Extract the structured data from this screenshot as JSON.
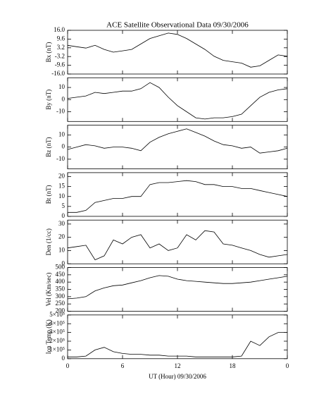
{
  "title": "ACE Satellite Observational Data   09/30/2006",
  "xlabel": "UT (Hour)   09/30/2006",
  "chart_data": [
    {
      "type": "line",
      "ylabel": "Bx (nT)",
      "color": "#000000",
      "x": [
        0,
        1,
        2,
        3,
        4,
        5,
        6,
        7,
        8,
        9,
        10,
        11,
        12,
        13,
        14,
        15,
        16,
        17,
        18,
        19,
        20,
        21,
        22,
        23,
        24
      ],
      "values": [
        5,
        4,
        3,
        5,
        2,
        0,
        1,
        2,
        6,
        10,
        12,
        14,
        13,
        10,
        6,
        2,
        -3,
        -6,
        -7,
        -8,
        -11,
        -10,
        -6,
        -2,
        -3
      ],
      "xlim": [
        0,
        24
      ],
      "ylim": [
        -16,
        16
      ],
      "yticks": [
        {
          "value": 16,
          "label": "16.0"
        },
        9.6,
        3.2,
        -3.2,
        -9.6,
        {
          "value": -16,
          "label": "-16.0"
        }
      ]
    },
    {
      "type": "line",
      "ylabel": "By (nT)",
      "color": "#000000",
      "x": [
        0,
        1,
        2,
        3,
        4,
        5,
        6,
        7,
        8,
        9,
        10,
        11,
        12,
        13,
        14,
        15,
        16,
        17,
        18,
        19,
        20,
        21,
        22,
        23,
        24
      ],
      "values": [
        1,
        2,
        3,
        6,
        5,
        6,
        7,
        7,
        9,
        14,
        10,
        2,
        -5,
        -10,
        -15,
        -16,
        -15,
        -15,
        -14,
        -12,
        -5,
        2,
        6,
        8,
        9
      ],
      "xlim": [
        0,
        24
      ],
      "ylim": [
        -18,
        18
      ],
      "yticks": [
        10,
        0,
        -10
      ]
    },
    {
      "type": "line",
      "ylabel": "Bz (nT)",
      "color": "#000000",
      "x": [
        0,
        1,
        2,
        3,
        4,
        5,
        6,
        7,
        8,
        9,
        10,
        11,
        12,
        13,
        14,
        15,
        16,
        17,
        18,
        19,
        20,
        21,
        22,
        23,
        24
      ],
      "values": [
        -2,
        0,
        2,
        1,
        -1,
        0,
        0,
        -1,
        -3,
        4,
        8,
        11,
        13,
        15,
        12,
        9,
        5,
        2,
        1,
        -1,
        0,
        -5,
        -4,
        -3,
        -1
      ],
      "xlim": [
        0,
        24
      ],
      "ylim": [
        -18,
        18
      ],
      "yticks": [
        10,
        0,
        -10
      ]
    },
    {
      "type": "line",
      "ylabel": "Bt (nT)",
      "color": "#000000",
      "x": [
        0,
        1,
        2,
        3,
        4,
        5,
        6,
        7,
        8,
        9,
        10,
        11,
        12,
        13,
        14,
        15,
        16,
        17,
        18,
        19,
        20,
        21,
        22,
        23,
        24
      ],
      "values": [
        2,
        2,
        3,
        7,
        8,
        9,
        9,
        10,
        10,
        16,
        17,
        17,
        17.5,
        18,
        17.5,
        16,
        16,
        15,
        15,
        14,
        14,
        13,
        12,
        11,
        10
      ],
      "xlim": [
        0,
        24
      ],
      "ylim": [
        0,
        22
      ],
      "yticks": [
        0,
        5,
        10,
        15,
        20
      ]
    },
    {
      "type": "line",
      "ylabel": "Den (1/cc)",
      "color": "#000000",
      "x": [
        0,
        1,
        2,
        3,
        4,
        5,
        6,
        7,
        8,
        9,
        10,
        11,
        12,
        13,
        14,
        15,
        16,
        17,
        18,
        19,
        20,
        21,
        22,
        23,
        24
      ],
      "values": [
        12,
        13,
        14,
        3,
        6,
        18,
        15,
        20,
        22,
        12,
        15,
        10,
        12,
        22,
        18,
        25,
        24,
        15,
        14,
        12,
        10,
        7,
        5,
        6,
        7
      ],
      "xlim": [
        0,
        24
      ],
      "ylim": [
        0,
        33
      ],
      "yticks": [
        0,
        10,
        20,
        30
      ]
    },
    {
      "type": "line",
      "ylabel": "Vel (Km/sec)",
      "color": "#000000",
      "x": [
        0,
        1,
        2,
        3,
        4,
        5,
        6,
        7,
        8,
        9,
        10,
        11,
        12,
        13,
        14,
        15,
        16,
        17,
        18,
        19,
        20,
        21,
        22,
        23,
        24
      ],
      "values": [
        285,
        290,
        300,
        340,
        360,
        375,
        380,
        395,
        410,
        430,
        445,
        440,
        420,
        410,
        405,
        400,
        395,
        390,
        390,
        395,
        400,
        410,
        420,
        430,
        440
      ],
      "xlim": [
        0,
        24
      ],
      "ylim": [
        200,
        500
      ],
      "yticks": [
        200,
        250,
        300,
        350,
        400,
        450,
        500
      ]
    },
    {
      "type": "line",
      "ylabel": "Ion Temp (K)",
      "color": "#000000",
      "x": [
        0,
        1,
        2,
        3,
        4,
        5,
        6,
        7,
        8,
        9,
        10,
        11,
        12,
        13,
        14,
        15,
        16,
        17,
        18,
        19,
        20,
        21,
        22,
        23,
        24
      ],
      "values": [
        20000,
        20000,
        30000,
        100000,
        130000,
        80000,
        60000,
        50000,
        50000,
        40000,
        40000,
        30000,
        30000,
        30000,
        20000,
        20000,
        20000,
        20000,
        20000,
        30000,
        200000,
        150000,
        250000,
        300000,
        300000
      ],
      "xlim": [
        0,
        24
      ],
      "ylim": [
        0,
        500000
      ],
      "yticks": [
        0,
        {
          "value": 100000,
          "label": "1×10⁵"
        },
        {
          "value": 200000,
          "label": "2×10⁵"
        },
        {
          "value": 300000,
          "label": "3×10⁵"
        },
        {
          "value": 400000,
          "label": "4×10⁵"
        },
        {
          "value": 500000,
          "label": "5×10⁵"
        }
      ],
      "xticks": [
        0,
        6,
        12,
        18,
        {
          "value": 24,
          "label": "0"
        }
      ]
    }
  ]
}
